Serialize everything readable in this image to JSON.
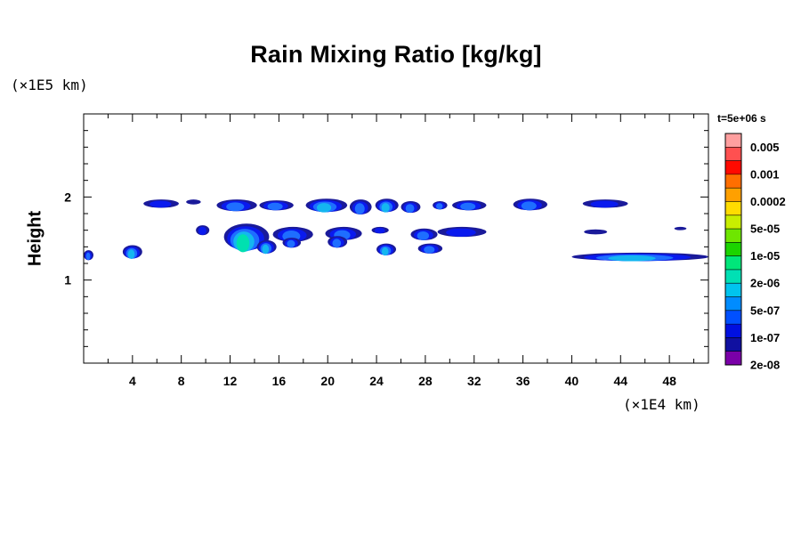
{
  "chart_data": {
    "type": "heatmap",
    "title": "Rain Mixing Ratio [kg/kg]",
    "ylabel": "Height",
    "xlabel": "",
    "x_multiplier": "(×1E4 km)",
    "y_multiplier": "(×1E5 km)",
    "timestamp": "t=5e+06 s",
    "xlim": [
      0,
      51.2
    ],
    "ylim": [
      0,
      3
    ],
    "x_ticks": [
      4,
      8,
      12,
      16,
      20,
      24,
      28,
      32,
      36,
      40,
      44,
      48
    ],
    "y_ticks": [
      1,
      2
    ],
    "colorbar": {
      "labels": [
        "0.005",
        "0.001",
        "0.0002",
        "5e-05",
        "1e-05",
        "2e-06",
        "5e-07",
        "1e-07",
        "2e-08"
      ],
      "colors": [
        "#ff9f9f",
        "#ff5050",
        "#ff0a00",
        "#ff6e00",
        "#ffa000",
        "#ffdc00",
        "#c8ee00",
        "#6ee600",
        "#1cd400",
        "#00e67a",
        "#00e0b4",
        "#00c4ee",
        "#008cff",
        "#0050ff",
        "#0010e0",
        "#1010a0",
        "#7a00a8"
      ]
    },
    "rain_cells": [
      {
        "x0": 0.0,
        "x1": 0.8,
        "y": 1.3,
        "h": 0.06,
        "level": 0.4
      },
      {
        "x0": 3.2,
        "x1": 4.8,
        "y": 1.34,
        "h": 0.08,
        "level": 0.5
      },
      {
        "x0": 4.9,
        "x1": 7.8,
        "y": 1.92,
        "h": 0.05,
        "level": 0.15
      },
      {
        "x0": 8.4,
        "x1": 9.6,
        "y": 1.94,
        "h": 0.03,
        "level": 0.05
      },
      {
        "x0": 9.2,
        "x1": 10.3,
        "y": 1.6,
        "h": 0.06,
        "level": 0.12
      },
      {
        "x0": 10.9,
        "x1": 14.2,
        "y": 1.9,
        "h": 0.07,
        "level": 0.3
      },
      {
        "x0": 14.4,
        "x1": 17.2,
        "y": 1.9,
        "h": 0.06,
        "level": 0.25
      },
      {
        "x0": 11.5,
        "x1": 15.2,
        "y": 1.52,
        "h": 0.16,
        "level": 0.65
      },
      {
        "x0": 14.2,
        "x1": 15.8,
        "y": 1.4,
        "h": 0.08,
        "level": 0.45
      },
      {
        "x0": 15.5,
        "x1": 18.8,
        "y": 1.55,
        "h": 0.09,
        "level": 0.35
      },
      {
        "x0": 16.3,
        "x1": 17.8,
        "y": 1.45,
        "h": 0.06,
        "level": 0.3
      },
      {
        "x0": 18.2,
        "x1": 21.6,
        "y": 1.9,
        "h": 0.08,
        "level": 0.45
      },
      {
        "x0": 21.8,
        "x1": 23.6,
        "y": 1.88,
        "h": 0.09,
        "level": 0.35
      },
      {
        "x0": 23.9,
        "x1": 25.8,
        "y": 1.9,
        "h": 0.08,
        "level": 0.45
      },
      {
        "x0": 26.0,
        "x1": 27.6,
        "y": 1.88,
        "h": 0.07,
        "level": 0.35
      },
      {
        "x0": 28.6,
        "x1": 29.8,
        "y": 1.9,
        "h": 0.05,
        "level": 0.25
      },
      {
        "x0": 30.2,
        "x1": 33.0,
        "y": 1.9,
        "h": 0.06,
        "level": 0.25
      },
      {
        "x0": 19.8,
        "x1": 22.8,
        "y": 1.56,
        "h": 0.08,
        "level": 0.25
      },
      {
        "x0": 20.0,
        "x1": 21.6,
        "y": 1.46,
        "h": 0.07,
        "level": 0.35
      },
      {
        "x0": 23.6,
        "x1": 25.0,
        "y": 1.6,
        "h": 0.04,
        "level": 0.1
      },
      {
        "x0": 24.0,
        "x1": 25.6,
        "y": 1.37,
        "h": 0.07,
        "level": 0.45
      },
      {
        "x0": 26.8,
        "x1": 29.0,
        "y": 1.55,
        "h": 0.07,
        "level": 0.3
      },
      {
        "x0": 27.4,
        "x1": 29.4,
        "y": 1.38,
        "h": 0.06,
        "level": 0.4
      },
      {
        "x0": 29.0,
        "x1": 33.0,
        "y": 1.58,
        "h": 0.06,
        "level": 0.2
      },
      {
        "x0": 35.2,
        "x1": 38.0,
        "y": 1.91,
        "h": 0.07,
        "level": 0.35
      },
      {
        "x0": 40.9,
        "x1": 44.6,
        "y": 1.92,
        "h": 0.05,
        "level": 0.15
      },
      {
        "x0": 41.0,
        "x1": 42.9,
        "y": 1.58,
        "h": 0.03,
        "level": 0.08
      },
      {
        "x0": 48.4,
        "x1": 49.4,
        "y": 1.62,
        "h": 0.02,
        "level": 0.05
      },
      {
        "x0": 40.0,
        "x1": 51.2,
        "y": 1.28,
        "h": 0.05,
        "level": 0.55
      }
    ]
  }
}
